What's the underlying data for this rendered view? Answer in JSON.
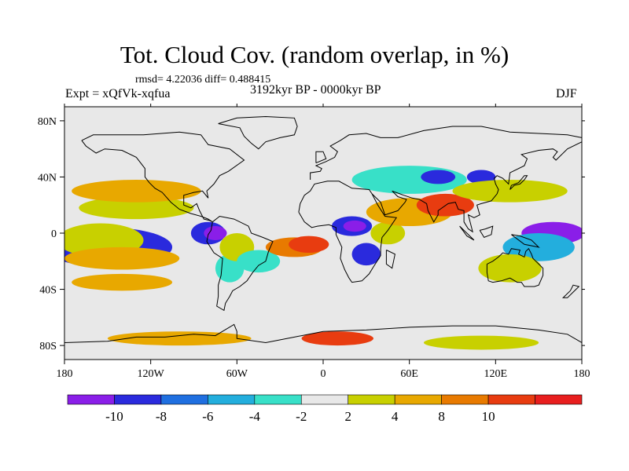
{
  "title": "Tot. Cloud Cov. (random overlap, in %)",
  "stats": "rmsd= 4.22036 diff= 0.488415",
  "experiment": "Expt = xQfVk-xqfua",
  "period": "3192kyr BP - 0000kyr BP",
  "season": "DJF",
  "map": {
    "lon_range": [
      -180,
      180
    ],
    "lat_range": [
      -90,
      90
    ],
    "x_ticks": [
      {
        "lon": -180,
        "label": "180"
      },
      {
        "lon": -120,
        "label": "120W"
      },
      {
        "lon": -60,
        "label": "60W"
      },
      {
        "lon": 0,
        "label": "0"
      },
      {
        "lon": 60,
        "label": "60E"
      },
      {
        "lon": 120,
        "label": "120E"
      },
      {
        "lon": 180,
        "label": "180"
      }
    ],
    "y_ticks": [
      {
        "lat": 80,
        "label": "80N"
      },
      {
        "lat": 40,
        "label": "40N"
      },
      {
        "lat": 0,
        "label": "0"
      },
      {
        "lat": -40,
        "label": "40S"
      },
      {
        "lat": -80,
        "label": "80S"
      }
    ],
    "background_color": "#e8e8e8",
    "coast_color": "#000000"
  },
  "colorbar": {
    "colors": [
      "#8a1ee8",
      "#2a2add",
      "#1f6fe0",
      "#23aedd",
      "#38e0c8",
      "#e8e8e8",
      "#c8d000",
      "#e8a800",
      "#e87a00",
      "#e83c10",
      "#e81e1e"
    ],
    "labels": [
      {
        "value": -10,
        "label": "-10"
      },
      {
        "value": -8,
        "label": "-8"
      },
      {
        "value": -6,
        "label": "-6"
      },
      {
        "value": -4,
        "label": "-4"
      },
      {
        "value": -2,
        "label": "-2"
      },
      {
        "value": 2,
        "label": "2"
      },
      {
        "value": 4,
        "label": "4"
      },
      {
        "value": 8,
        "label": "8"
      },
      {
        "value": 10,
        "label": "10"
      }
    ]
  },
  "regions": [
    {
      "lon": -160,
      "lat": -12,
      "rlon": 30,
      "rlat": 10,
      "cls": 0
    },
    {
      "lon": -150,
      "lat": -10,
      "rlon": 45,
      "rlat": 14,
      "cls": 1
    },
    {
      "lon": -155,
      "lat": -5,
      "rlon": 30,
      "rlat": 12,
      "cls": 6
    },
    {
      "lon": -140,
      "lat": -18,
      "rlon": 40,
      "rlat": 8,
      "cls": 7
    },
    {
      "lon": -130,
      "lat": 18,
      "rlon": 40,
      "rlat": 8,
      "cls": 6
    },
    {
      "lon": -130,
      "lat": 30,
      "rlon": 45,
      "rlat": 8,
      "cls": 7
    },
    {
      "lon": -140,
      "lat": -35,
      "rlon": 35,
      "rlat": 6,
      "cls": 7
    },
    {
      "lon": -80,
      "lat": 0,
      "rlon": 12,
      "rlat": 8,
      "cls": 1
    },
    {
      "lon": -75,
      "lat": 0,
      "rlon": 8,
      "rlat": 5,
      "cls": 0
    },
    {
      "lon": -65,
      "lat": -25,
      "rlon": 10,
      "rlat": 10,
      "cls": 4
    },
    {
      "lon": -60,
      "lat": -10,
      "rlon": 12,
      "rlat": 10,
      "cls": 6
    },
    {
      "lon": -45,
      "lat": -20,
      "rlon": 15,
      "rlat": 8,
      "cls": 4
    },
    {
      "lon": -20,
      "lat": -10,
      "rlon": 20,
      "rlat": 7,
      "cls": 8
    },
    {
      "lon": -10,
      "lat": -8,
      "rlon": 14,
      "rlat": 6,
      "cls": 9
    },
    {
      "lon": 20,
      "lat": 5,
      "rlon": 14,
      "rlat": 7,
      "cls": 1
    },
    {
      "lon": 22,
      "lat": 5,
      "rlon": 8,
      "rlat": 4,
      "cls": 0
    },
    {
      "lon": 30,
      "lat": -15,
      "rlon": 10,
      "rlat": 8,
      "cls": 1
    },
    {
      "lon": 45,
      "lat": 0,
      "rlon": 12,
      "rlat": 8,
      "cls": 6
    },
    {
      "lon": 60,
      "lat": 15,
      "rlon": 30,
      "rlat": 10,
      "cls": 7
    },
    {
      "lon": 85,
      "lat": 20,
      "rlon": 20,
      "rlat": 8,
      "cls": 9
    },
    {
      "lon": 60,
      "lat": 38,
      "rlon": 40,
      "rlat": 10,
      "cls": 4
    },
    {
      "lon": 80,
      "lat": 40,
      "rlon": 12,
      "rlat": 5,
      "cls": 1
    },
    {
      "lon": 110,
      "lat": 40,
      "rlon": 10,
      "rlat": 5,
      "cls": 1
    },
    {
      "lon": 130,
      "lat": 30,
      "rlon": 40,
      "rlat": 8,
      "cls": 6
    },
    {
      "lon": 160,
      "lat": 0,
      "rlon": 22,
      "rlat": 8,
      "cls": 0
    },
    {
      "lon": 150,
      "lat": -10,
      "rlon": 25,
      "rlat": 10,
      "cls": 3
    },
    {
      "lon": 130,
      "lat": -25,
      "rlon": 22,
      "rlat": 10,
      "cls": 6
    },
    {
      "lon": 10,
      "lat": -75,
      "rlon": 25,
      "rlat": 5,
      "cls": 9
    },
    {
      "lon": -100,
      "lat": -75,
      "rlon": 50,
      "rlat": 5,
      "cls": 7
    },
    {
      "lon": 110,
      "lat": -78,
      "rlon": 40,
      "rlat": 5,
      "cls": 6
    }
  ]
}
